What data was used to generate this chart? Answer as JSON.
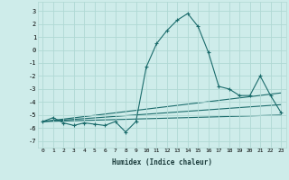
{
  "xlabel": "Humidex (Indice chaleur)",
  "bg_color": "#ceecea",
  "grid_color": "#b0d8d4",
  "line_color": "#1a6b6b",
  "xlim": [
    -0.5,
    23.5
  ],
  "ylim": [
    -7.5,
    3.7
  ],
  "xticks": [
    0,
    1,
    2,
    3,
    4,
    5,
    6,
    7,
    8,
    9,
    10,
    11,
    12,
    13,
    14,
    15,
    16,
    17,
    18,
    19,
    20,
    21,
    22,
    23
  ],
  "yticks": [
    -7,
    -6,
    -5,
    -4,
    -3,
    -2,
    -1,
    0,
    1,
    2,
    3
  ],
  "series": {
    "main": [
      [
        0,
        -5.5
      ],
      [
        1,
        -5.2
      ],
      [
        2,
        -5.6
      ],
      [
        3,
        -5.8
      ],
      [
        4,
        -5.6
      ],
      [
        5,
        -5.7
      ],
      [
        6,
        -5.8
      ],
      [
        7,
        -5.5
      ],
      [
        8,
        -6.3
      ],
      [
        9,
        -5.5
      ],
      [
        10,
        -1.3
      ],
      [
        11,
        0.5
      ],
      [
        12,
        1.5
      ],
      [
        13,
        2.3
      ],
      [
        14,
        2.8
      ],
      [
        15,
        1.8
      ],
      [
        16,
        -0.2
      ],
      [
        17,
        -2.8
      ],
      [
        18,
        -3.0
      ],
      [
        19,
        -3.5
      ],
      [
        20,
        -3.5
      ],
      [
        21,
        -2.0
      ],
      [
        22,
        -3.5
      ],
      [
        23,
        -4.8
      ]
    ],
    "line2": [
      [
        0,
        -5.5
      ],
      [
        23,
        -5.0
      ]
    ],
    "line3": [
      [
        0,
        -5.5
      ],
      [
        23,
        -3.3
      ]
    ],
    "line4": [
      [
        0,
        -5.5
      ],
      [
        23,
        -4.2
      ]
    ]
  }
}
